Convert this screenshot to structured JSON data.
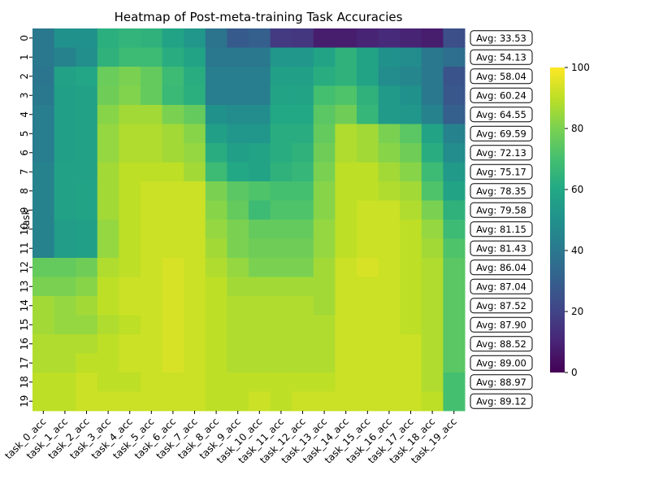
{
  "chart_data": {
    "type": "heatmap",
    "title": "Heatmap of Post-meta-training Task Accuracies",
    "ylabel": "task",
    "xlabel": "",
    "x_labels": [
      "task_0_acc",
      "task_1_acc",
      "task_2_acc",
      "task_3_acc",
      "task_4_acc",
      "task_5_acc",
      "task_6_acc",
      "task_7_acc",
      "task_8_acc",
      "task_9_acc",
      "task_10_acc",
      "task_11_acc",
      "task_12_acc",
      "task_13_acc",
      "task_14_acc",
      "task_15_acc",
      "task_16_acc",
      "task_17_acc",
      "task_18_acc",
      "task_19_acc"
    ],
    "y_labels": [
      "0",
      "1",
      "2",
      "3",
      "4",
      "5",
      "6",
      "7",
      "8",
      "9",
      "10",
      "11",
      "12",
      "13",
      "14",
      "15",
      "16",
      "17",
      "18",
      "19"
    ],
    "colormap": "viridis",
    "colorbar": {
      "min": 0,
      "max": 100,
      "ticks": [
        0,
        20,
        40,
        60,
        80,
        100
      ]
    },
    "values": [
      [
        40,
        50,
        50,
        63,
        65,
        64,
        58,
        52,
        38,
        28,
        30,
        17,
        16,
        8,
        8,
        10,
        12,
        10,
        8,
        24
      ],
      [
        40,
        44,
        49,
        64,
        68,
        68,
        62,
        58,
        40,
        40,
        40,
        52,
        52,
        58,
        64,
        58,
        50,
        48,
        40,
        36
      ],
      [
        39,
        57,
        59,
        77,
        80,
        76,
        68,
        62,
        42,
        42,
        42,
        56,
        56,
        62,
        64,
        58,
        48,
        46,
        40,
        26
      ],
      [
        40,
        56,
        57,
        78,
        81,
        76,
        67,
        63,
        42,
        42,
        42,
        58,
        58,
        70,
        72,
        64,
        54,
        50,
        40,
        27
      ],
      [
        42,
        56,
        57,
        82,
        86,
        86,
        80,
        76,
        50,
        48,
        48,
        60,
        60,
        74,
        78,
        66,
        54,
        52,
        44,
        30
      ],
      [
        42,
        56,
        57,
        84,
        88,
        88,
        86,
        82,
        56,
        52,
        52,
        62,
        62,
        76,
        88,
        86,
        80,
        74,
        58,
        44
      ],
      [
        42,
        56,
        57,
        84,
        88,
        88,
        86,
        84,
        62,
        56,
        58,
        62,
        64,
        78,
        88,
        86,
        82,
        78,
        62,
        48
      ],
      [
        44,
        57,
        57,
        86,
        90,
        90,
        90,
        86,
        68,
        60,
        58,
        64,
        66,
        80,
        90,
        90,
        86,
        82,
        68,
        54
      ],
      [
        44,
        57,
        58,
        86,
        90,
        92,
        92,
        92,
        80,
        74,
        72,
        70,
        70,
        82,
        90,
        90,
        88,
        86,
        72,
        58
      ],
      [
        44,
        57,
        58,
        86,
        90,
        92,
        92,
        92,
        82,
        76,
        68,
        72,
        72,
        82,
        90,
        92,
        92,
        88,
        80,
        64
      ],
      [
        44,
        55,
        56,
        84,
        90,
        92,
        92,
        92,
        84,
        80,
        76,
        76,
        76,
        84,
        90,
        92,
        92,
        90,
        84,
        68
      ],
      [
        44,
        55,
        56,
        84,
        90,
        92,
        92,
        92,
        86,
        80,
        78,
        78,
        78,
        84,
        90,
        92,
        92,
        90,
        86,
        72
      ],
      [
        76,
        76,
        78,
        88,
        90,
        92,
        94,
        92,
        88,
        84,
        80,
        80,
        80,
        86,
        92,
        94,
        92,
        90,
        88,
        74
      ],
      [
        80,
        80,
        82,
        90,
        92,
        92,
        94,
        92,
        90,
        86,
        86,
        86,
        86,
        86,
        92,
        92,
        92,
        90,
        88,
        74
      ],
      [
        86,
        84,
        86,
        90,
        92,
        92,
        94,
        92,
        90,
        88,
        88,
        88,
        88,
        86,
        92,
        92,
        92,
        90,
        88,
        74
      ],
      [
        86,
        84,
        84,
        88,
        90,
        92,
        94,
        92,
        90,
        88,
        88,
        88,
        88,
        88,
        92,
        92,
        92,
        90,
        88,
        74
      ],
      [
        88,
        88,
        88,
        90,
        92,
        92,
        94,
        92,
        90,
        88,
        88,
        88,
        88,
        88,
        92,
        92,
        92,
        92,
        88,
        74
      ],
      [
        88,
        88,
        90,
        90,
        92,
        92,
        94,
        92,
        90,
        88,
        88,
        88,
        88,
        88,
        92,
        92,
        92,
        92,
        88,
        74
      ],
      [
        90,
        90,
        92,
        90,
        90,
        92,
        92,
        92,
        90,
        90,
        90,
        90,
        90,
        90,
        92,
        92,
        92,
        92,
        88,
        70
      ],
      [
        90,
        90,
        92,
        92,
        92,
        92,
        92,
        92,
        90,
        90,
        92,
        90,
        92,
        92,
        92,
        92,
        92,
        92,
        90,
        70
      ]
    ],
    "row_averages": [
      "Avg: 33.53",
      "Avg: 54.13",
      "Avg: 58.04",
      "Avg: 60.24",
      "Avg: 64.55",
      "Avg: 69.59",
      "Avg: 72.13",
      "Avg: 75.17",
      "Avg: 78.35",
      "Avg: 79.58",
      "Avg: 81.15",
      "Avg: 81.43",
      "Avg: 86.04",
      "Avg: 87.04",
      "Avg: 87.52",
      "Avg: 87.90",
      "Avg: 88.52",
      "Avg: 89.00",
      "Avg: 88.97",
      "Avg: 89.12"
    ]
  }
}
